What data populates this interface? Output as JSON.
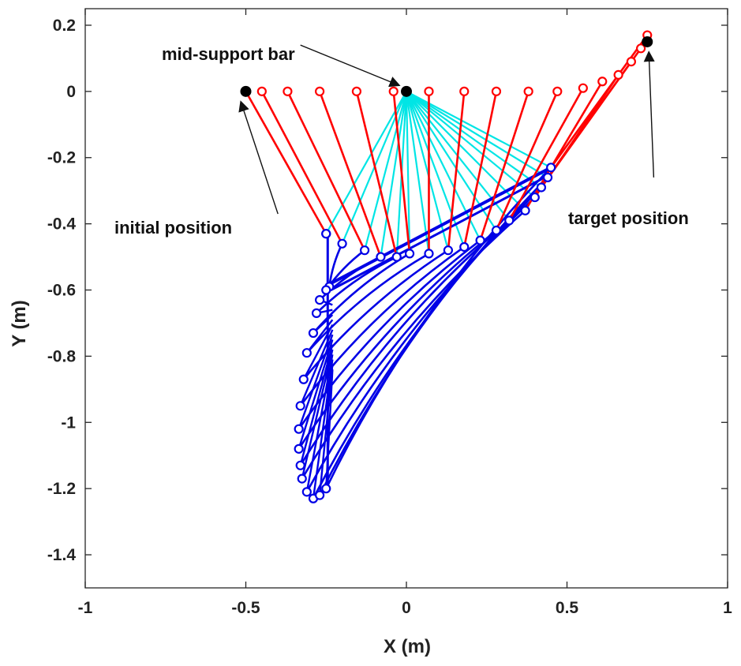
{
  "chart_data": {
    "type": "line",
    "title": "",
    "xlabel": "X (m)",
    "ylabel": "Y (m)",
    "xlim": [
      -1,
      1
    ],
    "ylim": [
      -1.5,
      0.25
    ],
    "xticks": [
      -1,
      -0.5,
      0,
      0.5,
      1
    ],
    "xtick_labels": [
      "-1",
      "-0.5",
      "0",
      "0.5",
      "1"
    ],
    "yticks": [
      0.2,
      0,
      -0.2,
      -0.4,
      -0.6,
      -0.8,
      -1,
      -1.2,
      -1.4
    ],
    "ytick_labels": [
      "0.2",
      "0",
      "-0.2",
      "-0.4",
      "-0.6",
      "-0.8",
      "-1",
      "-1.2",
      "-1.4"
    ],
    "grid": false,
    "colors": {
      "red_links": "#ff0000",
      "cyan_links": "#00e5e5",
      "blue_links": "#0000e6",
      "points": "#000000",
      "arrows": "#111111",
      "axes": "#262626"
    },
    "series": [
      {
        "name": "red links (base to middle joint)",
        "color": "#ff0000",
        "start": [
          [
            -0.5,
            0
          ],
          [
            -0.45,
            0
          ],
          [
            -0.37,
            0
          ],
          [
            -0.27,
            0
          ],
          [
            -0.155,
            0
          ],
          [
            -0.04,
            0
          ],
          [
            0.07,
            0
          ],
          [
            0.18,
            0
          ],
          [
            0.28,
            0
          ],
          [
            0.38,
            0
          ],
          [
            0.47,
            0
          ],
          [
            0.55,
            0.01
          ],
          [
            0.61,
            0.03
          ],
          [
            0.66,
            0.05
          ],
          [
            0.7,
            0.09
          ],
          [
            0.73,
            0.13
          ],
          [
            0.75,
            0.17
          ]
        ],
        "end": [
          [
            -0.25,
            -0.43
          ],
          [
            -0.2,
            -0.46
          ],
          [
            -0.13,
            -0.48
          ],
          [
            -0.08,
            -0.5
          ],
          [
            -0.03,
            -0.5
          ],
          [
            0.01,
            -0.49
          ],
          [
            0.07,
            -0.49
          ],
          [
            0.13,
            -0.48
          ],
          [
            0.18,
            -0.47
          ],
          [
            0.23,
            -0.45
          ],
          [
            0.28,
            -0.42
          ],
          [
            0.32,
            -0.39
          ],
          [
            0.37,
            -0.36
          ],
          [
            0.4,
            -0.32
          ],
          [
            0.42,
            -0.29
          ],
          [
            0.44,
            -0.26
          ],
          [
            0.45,
            -0.23
          ]
        ]
      },
      {
        "name": "cyan links (mid-support bar to middle joint)",
        "color": "#00e5e5",
        "origin": [
          0,
          0
        ],
        "end": [
          [
            -0.25,
            -0.43
          ],
          [
            -0.2,
            -0.46
          ],
          [
            -0.13,
            -0.48
          ],
          [
            -0.08,
            -0.5
          ],
          [
            -0.03,
            -0.5
          ],
          [
            0.01,
            -0.49
          ],
          [
            0.07,
            -0.49
          ],
          [
            0.13,
            -0.48
          ],
          [
            0.18,
            -0.47
          ],
          [
            0.23,
            -0.45
          ],
          [
            0.28,
            -0.42
          ],
          [
            0.32,
            -0.39
          ],
          [
            0.37,
            -0.36
          ],
          [
            0.4,
            -0.32
          ],
          [
            0.42,
            -0.29
          ],
          [
            0.44,
            -0.26
          ],
          [
            0.45,
            -0.23
          ]
        ]
      },
      {
        "name": "blue links (middle joint to end point)",
        "color": "#0000e6",
        "start": [
          [
            -0.25,
            -0.43
          ],
          [
            -0.2,
            -0.46
          ],
          [
            -0.13,
            -0.48
          ],
          [
            -0.08,
            -0.5
          ],
          [
            -0.03,
            -0.5
          ],
          [
            0.01,
            -0.49
          ],
          [
            0.07,
            -0.49
          ],
          [
            0.13,
            -0.48
          ],
          [
            0.18,
            -0.47
          ],
          [
            0.23,
            -0.45
          ],
          [
            0.28,
            -0.42
          ],
          [
            0.32,
            -0.39
          ],
          [
            0.37,
            -0.36
          ],
          [
            0.4,
            -0.32
          ],
          [
            0.42,
            -0.29
          ],
          [
            0.44,
            -0.26
          ],
          [
            0.45,
            -0.23
          ]
        ],
        "end_circles": [
          [
            -0.25,
            -0.43
          ],
          [
            -0.24,
            -0.59
          ],
          [
            -0.25,
            -0.6
          ],
          [
            -0.27,
            -0.63
          ],
          [
            -0.28,
            -0.67
          ],
          [
            -0.29,
            -0.73
          ],
          [
            -0.31,
            -0.79
          ],
          [
            -0.32,
            -0.87
          ],
          [
            -0.33,
            -0.95
          ],
          [
            -0.335,
            -1.02
          ],
          [
            -0.335,
            -1.08
          ],
          [
            -0.33,
            -1.13
          ],
          [
            -0.325,
            -1.17
          ],
          [
            -0.31,
            -1.21
          ],
          [
            -0.29,
            -1.23
          ],
          [
            -0.27,
            -1.22
          ],
          [
            -0.25,
            -1.2
          ]
        ],
        "curve_ends": [
          [
            -0.23,
            -1.2
          ],
          [
            -0.24,
            -0.58
          ],
          [
            -0.24,
            -0.58
          ],
          [
            -0.24,
            -0.58
          ],
          [
            -0.24,
            -0.58
          ],
          [
            -0.24,
            -0.58
          ]
        ]
      },
      {
        "name": "key points",
        "type": "scatter",
        "color": "#000000",
        "points": [
          [
            -0.5,
            0
          ],
          [
            0,
            0
          ],
          [
            0.75,
            0.15
          ]
        ]
      }
    ],
    "annotations": [
      {
        "id": "initial",
        "text": "initial position",
        "arrow_from": [
          -0.4,
          -0.37
        ],
        "arrow_to": [
          -0.5,
          0
        ]
      },
      {
        "id": "midsupport",
        "text": "mid-support bar",
        "arrow_from": [
          -0.33,
          0.14
        ],
        "arrow_to": [
          0,
          0
        ]
      },
      {
        "id": "target",
        "text": "target position",
        "arrow_from": [
          0.77,
          -0.26
        ],
        "arrow_to": [
          0.75,
          0.15
        ]
      }
    ]
  }
}
